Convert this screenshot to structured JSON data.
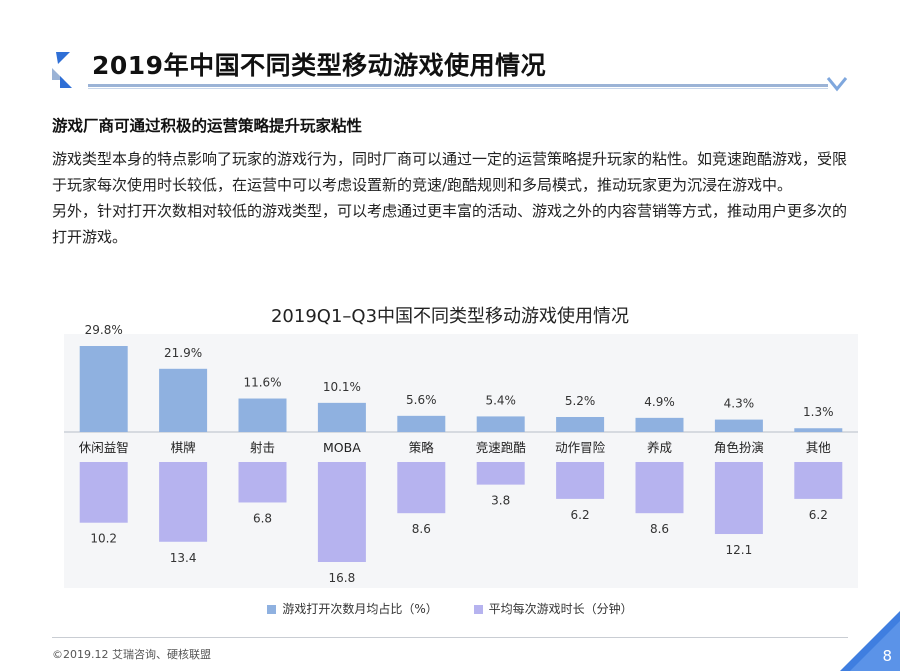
{
  "header": {
    "title": "2019年中国不同类型移动游戏使用情况"
  },
  "subtitle": "游戏厂商可通过积极的运营策略提升玩家粘性",
  "body": {
    "paragraph1": "游戏类型本身的特点影响了玩家的游戏行为，同时厂商可以通过一定的运营策略提升玩家的粘性。如竞速跑酷游戏，受限于玩家每次使用时长较低，在运营中可以考虑设置新的竞速/跑酷规则和多局模式，推动玩家更为沉浸在游戏中。",
    "paragraph2": "另外，针对打开次数相对较低的游戏类型，可以考虑通过更丰富的活动、游戏之外的内容营销等方式，推动用户更多次的打开游戏。"
  },
  "chart_data": {
    "type": "bar",
    "title": "2019Q1–Q3中国不同类型移动游戏使用情况",
    "categories": [
      "休闲益智",
      "棋牌",
      "射击",
      "MOBA",
      "策略",
      "竞速跑酷",
      "动作冒险",
      "养成",
      "角色扮演",
      "其他"
    ],
    "series": [
      {
        "name": "游戏打开次数月均占比（%）",
        "values": [
          29.8,
          21.9,
          11.6,
          10.1,
          5.6,
          5.4,
          5.2,
          4.9,
          4.3,
          1.3
        ],
        "labels": [
          "29.8%",
          "21.9%",
          "11.6%",
          "10.1%",
          "5.6%",
          "5.4%",
          "5.2%",
          "4.9%",
          "4.3%",
          "1.3%"
        ],
        "color": "#8fb1e0",
        "direction": "up"
      },
      {
        "name": "平均每次游戏时长（分钟）",
        "values": [
          10.2,
          13.4,
          6.8,
          16.8,
          8.6,
          3.8,
          6.2,
          8.6,
          12.1,
          6.2
        ],
        "labels": [
          "10.2",
          "13.4",
          "6.8",
          "16.8",
          "8.6",
          "3.8",
          "6.2",
          "8.6",
          "12.1",
          "6.2"
        ],
        "color": "#b6b3ef",
        "direction": "down"
      }
    ],
    "legend_position": "bottom",
    "grid": false
  },
  "footer": {
    "source": "©2019.12 艾瑞咨询、硬核联盟",
    "page_number": "8"
  },
  "colors": {
    "accent_blue": "#2f6fd6",
    "rule": "#9bb3d6",
    "panel_bg": "#f5f6f8"
  }
}
